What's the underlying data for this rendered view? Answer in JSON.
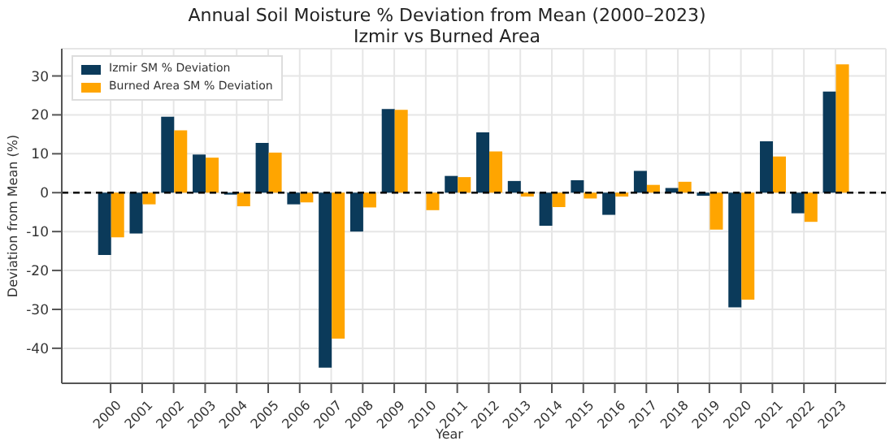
{
  "chart_data": {
    "type": "bar",
    "title": "Annual Soil Moisture % Deviation from Mean (2000–2023)",
    "subtitle": "Izmir vs Burned Area",
    "xlabel": "Year",
    "ylabel": "Deviation from Mean (%)",
    "categories": [
      "2000",
      "2001",
      "2002",
      "2003",
      "2004",
      "2005",
      "2006",
      "2007",
      "2008",
      "2009",
      "2010",
      "2011",
      "2012",
      "2013",
      "2014",
      "2015",
      "2016",
      "2017",
      "2018",
      "2019",
      "2020",
      "2021",
      "2022",
      "2023"
    ],
    "series": [
      {
        "name": "Izmir SM % Deviation",
        "color": "#0b3a5a",
        "values": [
          -16,
          -10.5,
          19.5,
          9.8,
          -0.5,
          12.8,
          -3,
          -45,
          -10,
          21.5,
          0,
          4.3,
          15.5,
          3,
          -8.5,
          3.2,
          -5.7,
          5.6,
          1.2,
          -0.8,
          -29.5,
          13.2,
          -5.3,
          26
        ]
      },
      {
        "name": "Burned Area SM % Deviation",
        "color": "#ffa500",
        "values": [
          -11.5,
          -3,
          16,
          9,
          -3.5,
          10.3,
          -2.5,
          -37.5,
          -3.8,
          21.3,
          -4.5,
          4,
          10.6,
          -1,
          -3.7,
          -1.5,
          -1,
          2,
          2.8,
          -9.5,
          -27.5,
          9.3,
          -7.5,
          33
        ]
      }
    ],
    "ylim": [
      -49,
      37
    ],
    "yticks": [
      -40,
      -30,
      -20,
      -10,
      0,
      10,
      20,
      30
    ],
    "grid": true,
    "legend": "top left",
    "ref_lines": [
      {
        "axis": "y",
        "value": 0,
        "color": "#000000",
        "line_style": "dashed"
      }
    ]
  }
}
